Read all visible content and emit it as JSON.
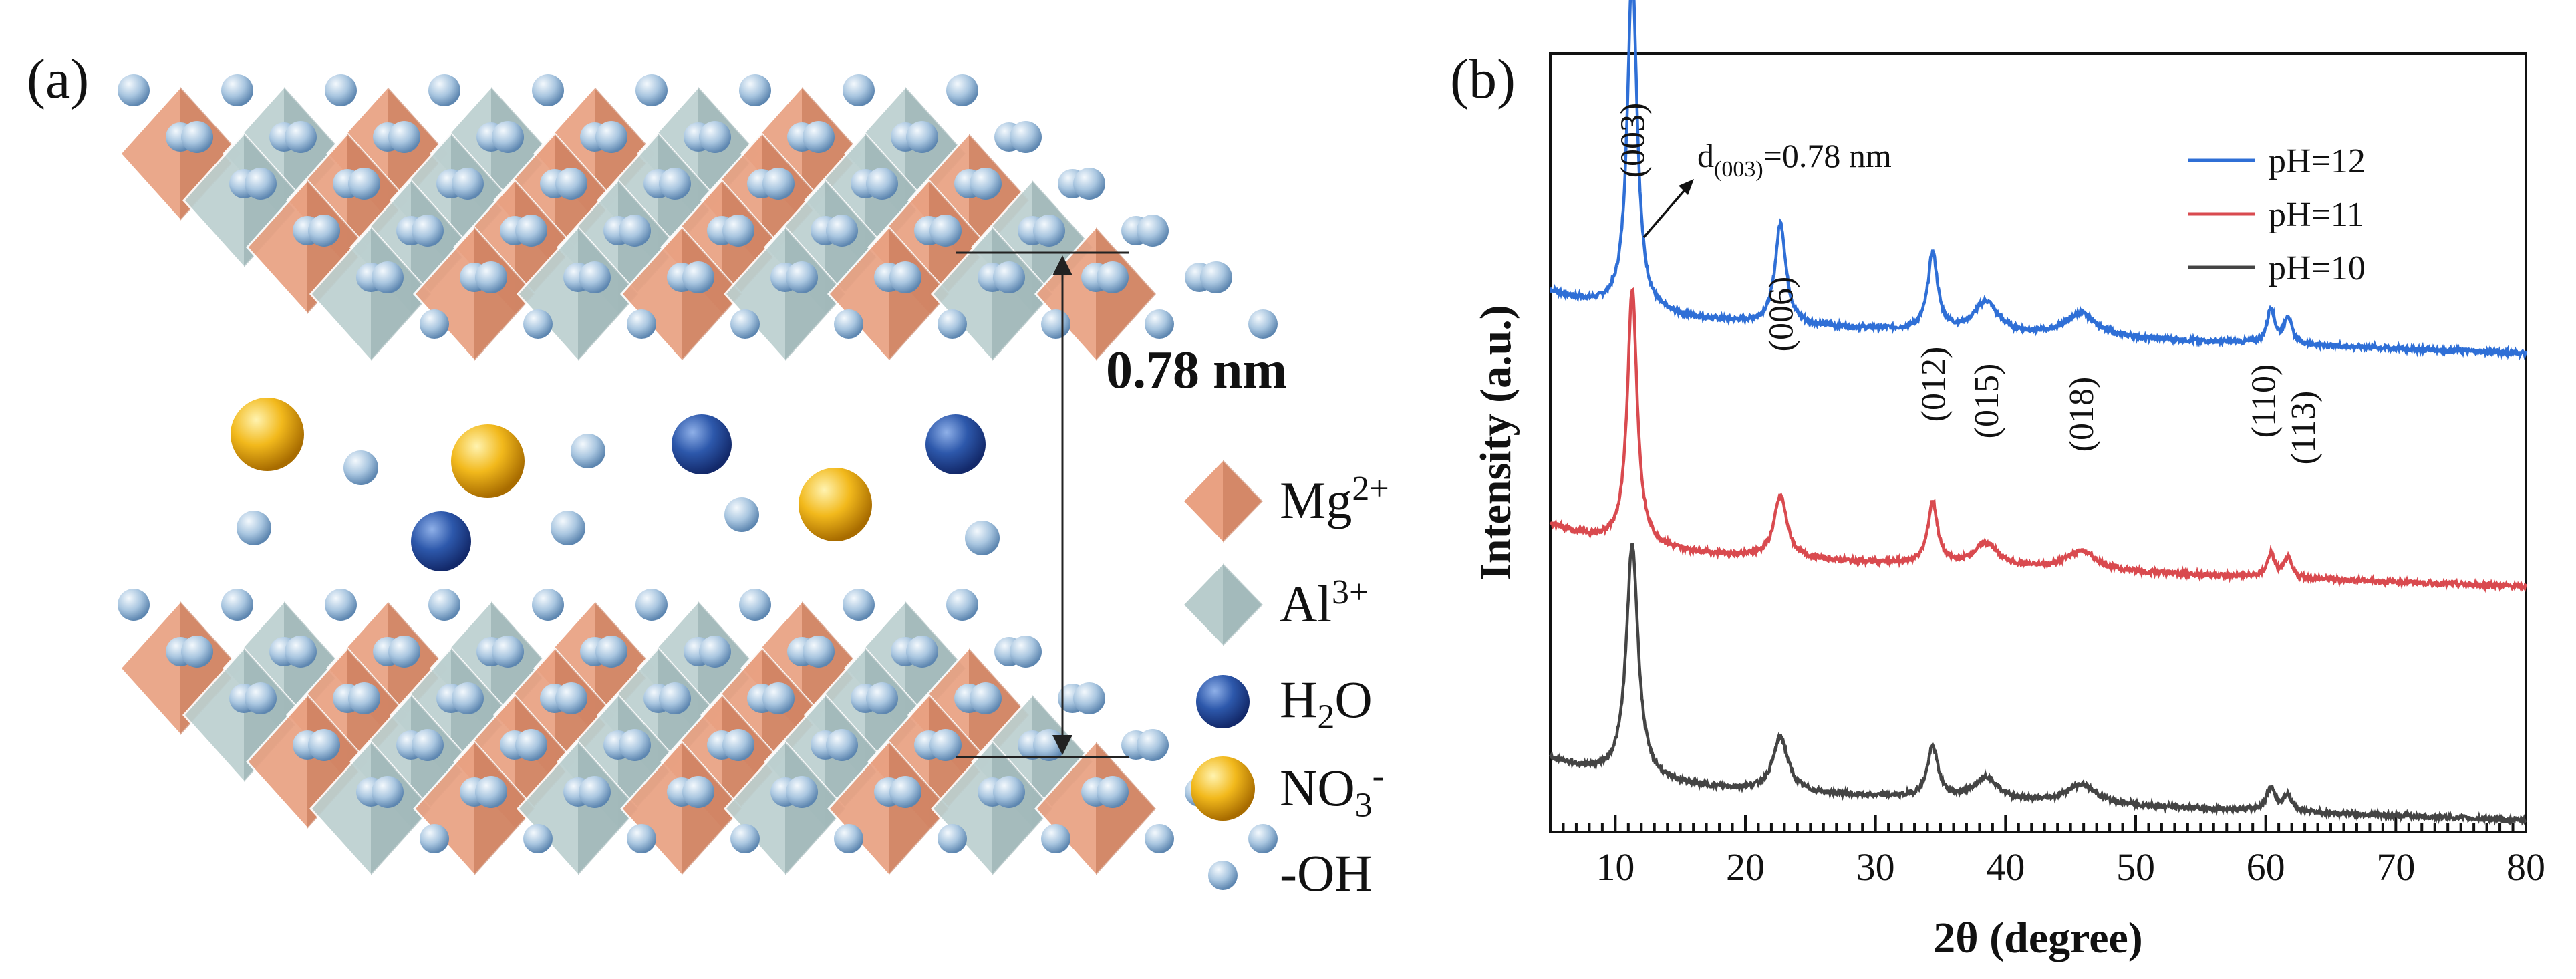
{
  "panel_a": {
    "label": "(a)",
    "spacing_label": "0.78 nm",
    "legend": [
      {
        "name": "Mg",
        "sup": "2+",
        "sub": "",
        "tail": "",
        "symbol": "orange-octahedron",
        "color": "#e9a182"
      },
      {
        "name": "Al",
        "sup": "3+",
        "sub": "",
        "tail": "",
        "symbol": "gray-octahedron",
        "color": "#b8cccc"
      },
      {
        "name": "H",
        "sup": "",
        "sub": "2",
        "tail": "O",
        "symbol": "dark-blue-sphere",
        "color": "#2c55a8"
      },
      {
        "name": "NO",
        "sup": "-",
        "sub": "3",
        "tail": "",
        "symbol": "yellow-sphere",
        "color": "#f0b418"
      },
      {
        "name": "-OH",
        "sup": "",
        "sub": "",
        "tail": "",
        "symbol": "light-blue-sphere",
        "color": "#8fb2d3"
      }
    ]
  },
  "panel_b": {
    "label": "(b)"
  },
  "chart_data": {
    "type": "line",
    "xlabel": "2θ (degree)",
    "ylabel": "Intensity (a.u.)",
    "xlim": [
      5,
      80
    ],
    "xticks": [
      "10",
      "20",
      "30",
      "40",
      "50",
      "60",
      "70",
      "80"
    ],
    "ylim": [
      0,
      1
    ],
    "legend_position": "top-right",
    "annotation": {
      "text": "=0.78 nm",
      "prefix": "d",
      "sub": "(003)",
      "near_peak": "(003)"
    },
    "peak_labels": [
      {
        "label": "(003)",
        "x": 11.3
      },
      {
        "label": "(006)",
        "x": 22.7
      },
      {
        "label": "(012)",
        "x": 34.4
      },
      {
        "label": "(015)",
        "x": 38.5
      },
      {
        "label": "(018)",
        "x": 45.8
      },
      {
        "label": "(110)",
        "x": 60.4
      },
      {
        "label": "(113)",
        "x": 61.7
      }
    ],
    "series": [
      {
        "name": "pH=12",
        "color": "#2f6fd6",
        "offset": 0.66,
        "peaks": [
          [
            11.3,
            0.44,
            0.45
          ],
          [
            22.7,
            0.13,
            0.5
          ],
          [
            34.4,
            0.1,
            0.45
          ],
          [
            38.5,
            0.04,
            1.1
          ],
          [
            45.8,
            0.03,
            1.4
          ],
          [
            60.4,
            0.045,
            0.35
          ],
          [
            61.7,
            0.035,
            0.35
          ]
        ]
      },
      {
        "name": "pH=11",
        "color": "#d94a4f",
        "offset": 0.36,
        "peaks": [
          [
            11.3,
            0.33,
            0.45
          ],
          [
            22.7,
            0.08,
            0.6
          ],
          [
            34.4,
            0.08,
            0.45
          ],
          [
            38.5,
            0.03,
            1.1
          ],
          [
            45.8,
            0.025,
            1.4
          ],
          [
            60.4,
            0.03,
            0.35
          ],
          [
            61.7,
            0.025,
            0.35
          ]
        ]
      },
      {
        "name": "pH=10",
        "color": "#444444",
        "offset": 0.06,
        "peaks": [
          [
            11.3,
            0.3,
            0.55
          ],
          [
            22.7,
            0.07,
            0.7
          ],
          [
            34.4,
            0.065,
            0.5
          ],
          [
            38.5,
            0.03,
            1.1
          ],
          [
            45.8,
            0.025,
            1.4
          ],
          [
            60.4,
            0.03,
            0.4
          ],
          [
            61.7,
            0.02,
            0.4
          ]
        ]
      }
    ]
  }
}
